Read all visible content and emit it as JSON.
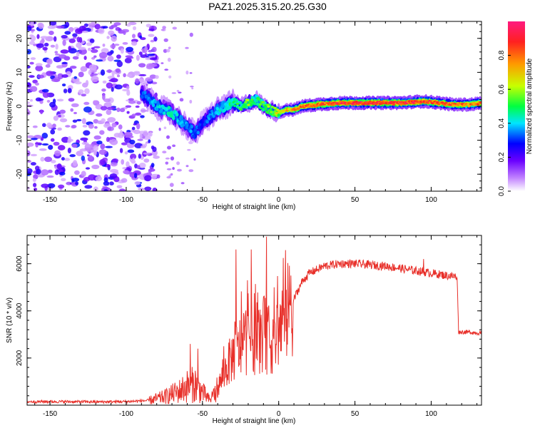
{
  "title": "PAZ1.2025.315.20.25.G30",
  "chart_data": [
    {
      "type": "heatmap",
      "name": "spectrogram",
      "xlabel": "Height of straight line (km)",
      "ylabel": "Frequency (Hz)",
      "xlim": [
        -165,
        133
      ],
      "ylim": [
        -25,
        25
      ],
      "xticks": [
        -150,
        -100,
        -50,
        0,
        50,
        100
      ],
      "yticks": [
        -20,
        -10,
        0,
        10,
        20
      ],
      "colorbar": {
        "label": "Normalized spectral amplitude",
        "range": [
          0,
          1
        ],
        "ticks": [
          0.0,
          0.2,
          0.4,
          0.6,
          0.8
        ],
        "tick_labels": [
          "0.0",
          "0.2",
          "0.4",
          "0.6",
          "0.8"
        ],
        "stops": [
          "#ffffff",
          "#c080ff",
          "#6a00ff",
          "#0000ff",
          "#00e5ff",
          "#00ff40",
          "#c8ff00",
          "#ff9900",
          "#ff2020",
          "#ff1a80"
        ]
      },
      "noise_region": {
        "x_range": [
          -165,
          -80
        ],
        "freq_range": [
          -25,
          25
        ],
        "amplitude": [
          0.05,
          0.3
        ]
      },
      "signal_track": [
        {
          "x": -90,
          "f": 4,
          "a": 0.3
        },
        {
          "x": -85,
          "f": 2,
          "a": 0.35
        },
        {
          "x": -80,
          "f": 0,
          "a": 0.4
        },
        {
          "x": -75,
          "f": -1,
          "a": 0.4
        },
        {
          "x": -70,
          "f": -2,
          "a": 0.45
        },
        {
          "x": -65,
          "f": -4,
          "a": 0.4
        },
        {
          "x": -60,
          "f": -6,
          "a": 0.35
        },
        {
          "x": -55,
          "f": -8,
          "a": 0.35
        },
        {
          "x": -50,
          "f": -5,
          "a": 0.3
        },
        {
          "x": -45,
          "f": -3,
          "a": 0.35
        },
        {
          "x": -40,
          "f": -1,
          "a": 0.4
        },
        {
          "x": -35,
          "f": 0,
          "a": 0.45
        },
        {
          "x": -30,
          "f": 1,
          "a": 0.5
        },
        {
          "x": -25,
          "f": 0,
          "a": 0.5
        },
        {
          "x": -20,
          "f": 1,
          "a": 0.6
        },
        {
          "x": -15,
          "f": 2,
          "a": 0.5
        },
        {
          "x": -10,
          "f": 0,
          "a": 0.55
        },
        {
          "x": -5,
          "f": -1,
          "a": 0.6
        },
        {
          "x": 0,
          "f": -2,
          "a": 0.65
        },
        {
          "x": 5,
          "f": -1,
          "a": 0.7
        },
        {
          "x": 10,
          "f": -1,
          "a": 0.75
        },
        {
          "x": 15,
          "f": 0,
          "a": 0.8
        },
        {
          "x": 25,
          "f": 0.5,
          "a": 0.85
        },
        {
          "x": 40,
          "f": 1,
          "a": 0.9
        },
        {
          "x": 60,
          "f": 1,
          "a": 0.92
        },
        {
          "x": 80,
          "f": 1,
          "a": 0.9
        },
        {
          "x": 95,
          "f": 1.5,
          "a": 0.88
        },
        {
          "x": 105,
          "f": 1,
          "a": 0.85
        },
        {
          "x": 115,
          "f": 0.5,
          "a": 0.82
        },
        {
          "x": 125,
          "f": 0.5,
          "a": 0.8
        },
        {
          "x": 133,
          "f": 1,
          "a": 0.8
        }
      ]
    },
    {
      "type": "line",
      "name": "snr",
      "xlabel": "Height of straight line (km)",
      "ylabel": "SNR (10 * v/v)",
      "xlim": [
        -165,
        133
      ],
      "ylim": [
        0,
        7200
      ],
      "xticks": [
        -150,
        -100,
        -50,
        0,
        50,
        100
      ],
      "yticks": [
        2000,
        4000,
        6000
      ],
      "color": "#e8302a",
      "series": [
        {
          "name": "SNR",
          "x": [
            -165,
            -140,
            -120,
            -100,
            -85,
            -75,
            -65,
            -60,
            -55,
            -50,
            -45,
            -40,
            -35,
            -30,
            -25,
            -20,
            -15,
            -10,
            -5,
            0,
            5,
            10,
            15,
            20,
            30,
            40,
            50,
            60,
            70,
            80,
            90,
            100,
            110,
            117,
            118,
            125,
            133
          ],
          "values": [
            150,
            150,
            140,
            150,
            200,
            350,
            600,
            800,
            900,
            550,
            200,
            700,
            1500,
            2100,
            2500,
            2900,
            2800,
            3000,
            2700,
            3200,
            3800,
            4500,
            5200,
            5600,
            5900,
            6000,
            6000,
            5950,
            5900,
            5800,
            5700,
            5600,
            5500,
            5450,
            3100,
            3100,
            3050
          ],
          "spikes": [
            [
              -58,
              2600
            ],
            [
              -53,
              2400
            ],
            [
              -36,
              2500
            ],
            [
              -28,
              6600
            ],
            [
              -18,
              6600
            ],
            [
              -8,
              7150
            ],
            [
              -3,
              5000
            ],
            [
              8,
              5500
            ],
            [
              95,
              6200
            ]
          ]
        }
      ]
    }
  ]
}
